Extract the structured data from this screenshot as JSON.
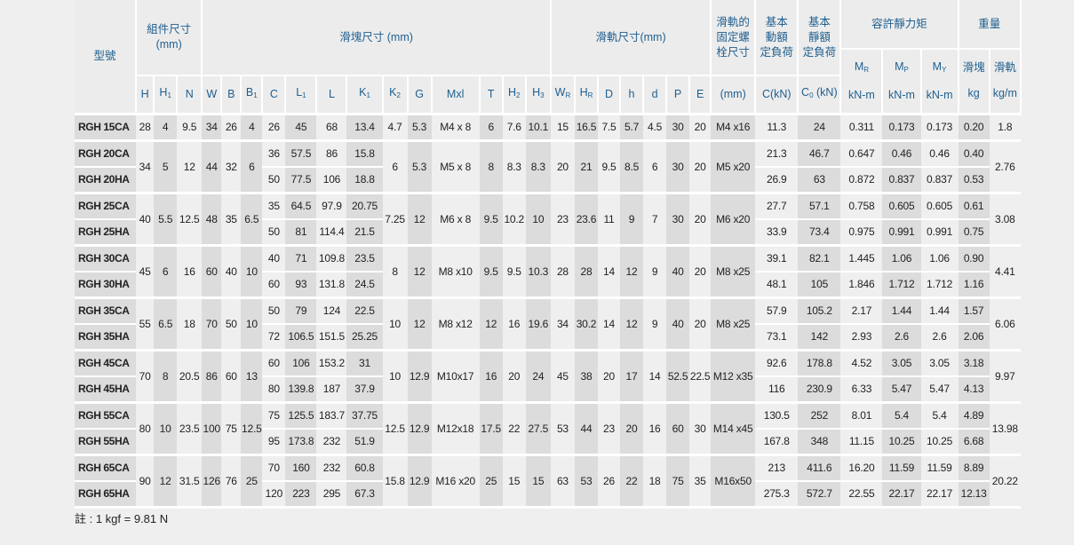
{
  "header": {
    "model": "型號",
    "assembly": "組件尺寸",
    "assembly_unit": "(mm)",
    "block": "滑塊尺寸 (mm)",
    "rail": "滑軌尺寸(mm)",
    "bolt_l1": "滑軌的",
    "bolt_l2": "固定螺",
    "bolt_l3": "栓尺寸",
    "dyn_l1": "基本",
    "dyn_l2": "動額",
    "dyn_l3": "定負荷",
    "stat_l1": "基本",
    "stat_l2": "靜額",
    "stat_l3": "定負荷",
    "moment": "容許靜力矩",
    "weight": "重量",
    "moment_cols": [
      {
        "t": "M",
        "s": "R",
        "unit": "kN-m"
      },
      {
        "t": "M",
        "s": "P",
        "unit": "kN-m"
      },
      {
        "t": "M",
        "s": "Y",
        "unit": "kN-m"
      }
    ],
    "weight_cols": [
      {
        "t": "滑塊",
        "unit": "kg"
      },
      {
        "t": "滑軌",
        "unit": "kg/m"
      }
    ],
    "letters": [
      {
        "t": "H",
        "s": ""
      },
      {
        "t": "H",
        "s": "1"
      },
      {
        "t": "N",
        "s": ""
      },
      {
        "t": "W",
        "s": ""
      },
      {
        "t": "B",
        "s": ""
      },
      {
        "t": "B",
        "s": "1"
      },
      {
        "t": "C",
        "s": ""
      },
      {
        "t": "L",
        "s": "1"
      },
      {
        "t": "L",
        "s": ""
      },
      {
        "t": "K",
        "s": "1"
      },
      {
        "t": "K",
        "s": "2"
      },
      {
        "t": "G",
        "s": ""
      },
      {
        "t": "Mxl",
        "s": ""
      },
      {
        "t": "T",
        "s": ""
      },
      {
        "t": "H",
        "s": "2"
      },
      {
        "t": "H",
        "s": "3"
      },
      {
        "t": "W",
        "s": "R"
      },
      {
        "t": "H",
        "s": "R"
      },
      {
        "t": "D",
        "s": ""
      },
      {
        "t": "h",
        "s": ""
      },
      {
        "t": "d",
        "s": ""
      },
      {
        "t": "P",
        "s": ""
      },
      {
        "t": "E",
        "s": ""
      },
      {
        "t": "(mm)",
        "s": ""
      },
      {
        "t": "C(kN)",
        "s": ""
      },
      {
        "t": "C",
        "s": "0",
        "after": " (kN)"
      }
    ]
  },
  "table": {
    "groups": [
      {
        "rows": [
          [
            "RGH 15CA",
            "28",
            "4",
            "9.5",
            "34",
            "26",
            "4",
            "26",
            "45",
            "68",
            "13.4",
            "4.7",
            "5.3",
            "M4 x 8",
            "6",
            "7.6",
            "10.1",
            "15",
            "16.5",
            "7.5",
            "5.7",
            "4.5",
            "30",
            "20",
            "M4 x16",
            "11.3",
            "24",
            "0.311",
            "0.173",
            "0.173",
            "0.20",
            "1.8"
          ]
        ]
      },
      {
        "rows": [
          [
            "RGH 20CA",
            "34",
            "5",
            "12",
            "44",
            "32",
            "6",
            "36",
            "57.5",
            "86",
            "15.8",
            "6",
            "5.3",
            "M5 x 8",
            "8",
            "8.3",
            "8.3",
            "20",
            "21",
            "9.5",
            "8.5",
            "6",
            "30",
            "20",
            "M5 x20",
            "21.3",
            "46.7",
            "0.647",
            "0.46",
            "0.46",
            "0.40",
            "2.76"
          ],
          [
            "RGH 20HA",
            null,
            null,
            null,
            null,
            null,
            null,
            "50",
            "77.5",
            "106",
            "18.8",
            null,
            null,
            null,
            null,
            null,
            null,
            null,
            null,
            null,
            null,
            null,
            null,
            null,
            null,
            "26.9",
            "63",
            "0.872",
            "0.837",
            "0.837",
            "0.53",
            null
          ]
        ]
      },
      {
        "rows": [
          [
            "RGH 25CA",
            "40",
            "5.5",
            "12.5",
            "48",
            "35",
            "6.5",
            "35",
            "64.5",
            "97.9",
            "20.75",
            "7.25",
            "12",
            "M6 x 8",
            "9.5",
            "10.2",
            "10",
            "23",
            "23.6",
            "11",
            "9",
            "7",
            "30",
            "20",
            "M6 x20",
            "27.7",
            "57.1",
            "0.758",
            "0.605",
            "0.605",
            "0.61",
            "3.08"
          ],
          [
            "RGH 25HA",
            null,
            null,
            null,
            null,
            null,
            null,
            "50",
            "81",
            "114.4",
            "21.5",
            null,
            null,
            null,
            null,
            null,
            null,
            null,
            null,
            null,
            null,
            null,
            null,
            null,
            null,
            "33.9",
            "73.4",
            "0.975",
            "0.991",
            "0.991",
            "0.75",
            null
          ]
        ]
      },
      {
        "rows": [
          [
            "RGH 30CA",
            "45",
            "6",
            "16",
            "60",
            "40",
            "10",
            "40",
            "71",
            "109.8",
            "23.5",
            "8",
            "12",
            "M8 x10",
            "9.5",
            "9.5",
            "10.3",
            "28",
            "28",
            "14",
            "12",
            "9",
            "40",
            "20",
            "M8 x25",
            "39.1",
            "82.1",
            "1.445",
            "1.06",
            "1.06",
            "0.90",
            "4.41"
          ],
          [
            "RGH 30HA",
            null,
            null,
            null,
            null,
            null,
            null,
            "60",
            "93",
            "131.8",
            "24.5",
            null,
            null,
            null,
            null,
            null,
            null,
            null,
            null,
            null,
            null,
            null,
            null,
            null,
            null,
            "48.1",
            "105",
            "1.846",
            "1.712",
            "1.712",
            "1.16",
            null
          ]
        ]
      },
      {
        "rows": [
          [
            "RGH 35CA",
            "55",
            "6.5",
            "18",
            "70",
            "50",
            "10",
            "50",
            "79",
            "124",
            "22.5",
            "10",
            "12",
            "M8 x12",
            "12",
            "16",
            "19.6",
            "34",
            "30.2",
            "14",
            "12",
            "9",
            "40",
            "20",
            "M8 x25",
            "57.9",
            "105.2",
            "2.17",
            "1.44",
            "1.44",
            "1.57",
            "6.06"
          ],
          [
            "RGH 35HA",
            null,
            null,
            null,
            null,
            null,
            null,
            "72",
            "106.5",
            "151.5",
            "25.25",
            null,
            null,
            null,
            null,
            null,
            null,
            null,
            null,
            null,
            null,
            null,
            null,
            null,
            null,
            "73.1",
            "142",
            "2.93",
            "2.6",
            "2.6",
            "2.06",
            null
          ]
        ]
      },
      {
        "rows": [
          [
            "RGH 45CA",
            "70",
            "8",
            "20.5",
            "86",
            "60",
            "13",
            "60",
            "106",
            "153.2",
            "31",
            "10",
            "12.9",
            "M10x17",
            "16",
            "20",
            "24",
            "45",
            "38",
            "20",
            "17",
            "14",
            "52.5",
            "22.5",
            "M12 x35",
            "92.6",
            "178.8",
            "4.52",
            "3.05",
            "3.05",
            "3.18",
            "9.97"
          ],
          [
            "RGH 45HA",
            null,
            null,
            null,
            null,
            null,
            null,
            "80",
            "139.8",
            "187",
            "37.9",
            null,
            null,
            null,
            null,
            null,
            null,
            null,
            null,
            null,
            null,
            null,
            null,
            null,
            null,
            "116",
            "230.9",
            "6.33",
            "5.47",
            "5.47",
            "4.13",
            null
          ]
        ]
      },
      {
        "rows": [
          [
            "RGH 55CA",
            "80",
            "10",
            "23.5",
            "100",
            "75",
            "12.5",
            "75",
            "125.5",
            "183.7",
            "37.75",
            "12.5",
            "12.9",
            "M12x18",
            "17.5",
            "22",
            "27.5",
            "53",
            "44",
            "23",
            "20",
            "16",
            "60",
            "30",
            "M14 x45",
            "130.5",
            "252",
            "8.01",
            "5.4",
            "5.4",
            "4.89",
            "13.98"
          ],
          [
            "RGH 55HA",
            null,
            null,
            null,
            null,
            null,
            null,
            "95",
            "173.8",
            "232",
            "51.9",
            null,
            null,
            null,
            null,
            null,
            null,
            null,
            null,
            null,
            null,
            null,
            null,
            null,
            null,
            "167.8",
            "348",
            "11.15",
            "10.25",
            "10.25",
            "6.68",
            null
          ]
        ]
      },
      {
        "rows": [
          [
            "RGH 65CA",
            "90",
            "12",
            "31.5",
            "126",
            "76",
            "25",
            "70",
            "160",
            "232",
            "60.8",
            "15.8",
            "12.9",
            "M16 x20",
            "25",
            "15",
            "15",
            "63",
            "53",
            "26",
            "22",
            "18",
            "75",
            "35",
            "M16x50",
            "213",
            "411.6",
            "16.20",
            "11.59",
            "11.59",
            "8.89",
            "20.22"
          ],
          [
            "RGH 65HA",
            null,
            null,
            null,
            null,
            null,
            null,
            "120",
            "223",
            "295",
            "67.3",
            null,
            null,
            null,
            null,
            null,
            null,
            null,
            null,
            null,
            null,
            null,
            null,
            null,
            null,
            "275.3",
            "572.7",
            "22.55",
            "22.17",
            "22.17",
            "12.13",
            null
          ]
        ]
      }
    ]
  },
  "note": "註 : 1 kgf = 9.81 N",
  "colors": {
    "header_text": "#1f5f8f",
    "cell_light": "#efefef",
    "cell_dark": "#dcdcdc",
    "separator": "#ffffff"
  }
}
